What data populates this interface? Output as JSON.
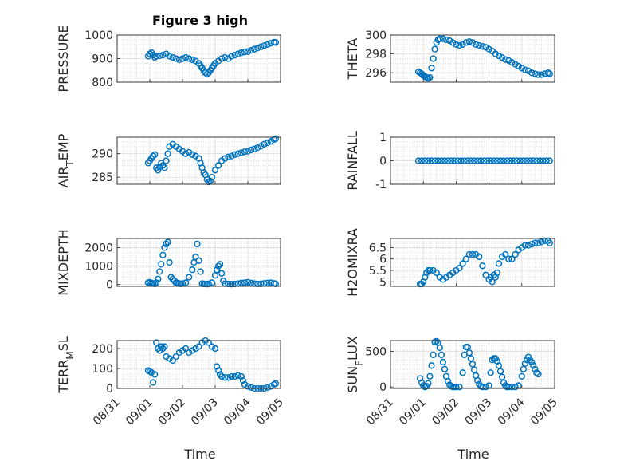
{
  "figure": {
    "title": "Figure 3 high",
    "xlabel": "Time",
    "marker_color": "#0072BD"
  },
  "chart_data": [
    {
      "type": "scatter",
      "ylabel_html": "PRESSURE",
      "ylim": [
        800,
        1000
      ],
      "yticks": [
        "800",
        "900",
        "1000"
      ],
      "xlim": [
        0,
        5
      ],
      "x": [
        0.95,
        1.0,
        1.05,
        1.1,
        1.15,
        1.2,
        1.3,
        1.4,
        1.5,
        1.6,
        1.7,
        1.8,
        1.9,
        2.0,
        2.1,
        2.2,
        2.3,
        2.4,
        2.5,
        2.55,
        2.6,
        2.65,
        2.7,
        2.75,
        2.8,
        2.85,
        2.9,
        2.95,
        3.0,
        3.1,
        3.2,
        3.3,
        3.4,
        3.5,
        3.6,
        3.7,
        3.8,
        3.9,
        4.0,
        4.1,
        4.2,
        4.3,
        4.4,
        4.5,
        4.6,
        4.7,
        4.8,
        4.85
      ],
      "y": [
        910,
        920,
        925,
        915,
        905,
        910,
        912,
        915,
        920,
        910,
        905,
        900,
        895,
        900,
        905,
        900,
        895,
        890,
        880,
        870,
        860,
        850,
        840,
        835,
        840,
        850,
        860,
        870,
        880,
        890,
        900,
        905,
        900,
        910,
        915,
        920,
        925,
        928,
        930,
        935,
        940,
        945,
        950,
        955,
        960,
        965,
        970,
        968
      ]
    },
    {
      "type": "scatter",
      "ylabel_html": "THETA",
      "ylim": [
        295,
        300
      ],
      "yticks": [
        "296",
        "298",
        "300"
      ],
      "xlim": [
        0,
        5
      ],
      "x": [
        0.85,
        0.9,
        0.95,
        1.0,
        1.05,
        1.1,
        1.15,
        1.2,
        1.25,
        1.3,
        1.35,
        1.4,
        1.45,
        1.5,
        1.6,
        1.7,
        1.8,
        1.9,
        2.0,
        2.1,
        2.2,
        2.3,
        2.4,
        2.5,
        2.6,
        2.7,
        2.8,
        2.9,
        3.0,
        3.1,
        3.2,
        3.3,
        3.4,
        3.5,
        3.6,
        3.7,
        3.8,
        3.9,
        4.0,
        4.1,
        4.2,
        4.3,
        4.4,
        4.5,
        4.6,
        4.7,
        4.8,
        4.85
      ],
      "y": [
        296.1,
        296.0,
        295.9,
        295.7,
        295.6,
        295.5,
        295.4,
        295.5,
        296.5,
        297.5,
        298.5,
        299.2,
        299.5,
        299.6,
        299.6,
        299.5,
        299.4,
        299.2,
        299.0,
        298.9,
        299.0,
        299.2,
        299.3,
        299.2,
        299.0,
        298.9,
        298.8,
        298.7,
        298.5,
        298.3,
        298.0,
        297.8,
        297.6,
        297.4,
        297.3,
        297.1,
        296.9,
        296.7,
        296.5,
        296.3,
        296.2,
        296.0,
        295.9,
        295.8,
        295.8,
        295.9,
        296.0,
        295.9
      ]
    },
    {
      "type": "scatter",
      "ylabel_html": "AIR<tspan baseline-shift=\"sub\" font-size=\"12\">T</tspan>EMP",
      "ylim": [
        283.5,
        293.5
      ],
      "yticks": [
        "285",
        "290"
      ],
      "xlim": [
        0,
        5
      ],
      "x": [
        0.95,
        1.0,
        1.05,
        1.1,
        1.15,
        1.2,
        1.25,
        1.3,
        1.35,
        1.4,
        1.45,
        1.5,
        1.55,
        1.6,
        1.7,
        1.8,
        1.9,
        2.0,
        2.1,
        2.2,
        2.3,
        2.4,
        2.5,
        2.55,
        2.6,
        2.65,
        2.7,
        2.75,
        2.8,
        2.85,
        2.9,
        3.0,
        3.1,
        3.2,
        3.3,
        3.4,
        3.5,
        3.6,
        3.7,
        3.8,
        3.9,
        4.0,
        4.1,
        4.2,
        4.3,
        4.4,
        4.5,
        4.6,
        4.7,
        4.8,
        4.85
      ],
      "y": [
        288,
        288.5,
        289,
        289.5,
        289.8,
        287,
        286.5,
        287.2,
        288,
        287.5,
        287,
        288.5,
        290,
        291.5,
        292,
        291.5,
        291,
        290.5,
        290,
        290.3,
        289.8,
        289.5,
        289,
        288,
        287,
        286,
        285.5,
        284.5,
        284,
        284.2,
        285,
        286.5,
        287.5,
        288.5,
        289,
        289.3,
        289.5,
        289.8,
        290,
        290.2,
        290.4,
        290.5,
        290.8,
        291,
        291.3,
        291.6,
        292,
        292.3,
        292.6,
        293,
        293.2
      ]
    },
    {
      "type": "scatter",
      "ylabel_html": "RAINFALL",
      "ylim": [
        -1,
        1
      ],
      "yticks": [
        "-1",
        "0",
        "1"
      ],
      "xlim": [
        0,
        5
      ],
      "x": [
        0.85,
        0.95,
        1.05,
        1.15,
        1.25,
        1.35,
        1.45,
        1.55,
        1.65,
        1.75,
        1.85,
        1.95,
        2.05,
        2.15,
        2.25,
        2.35,
        2.45,
        2.55,
        2.65,
        2.75,
        2.85,
        2.95,
        3.05,
        3.15,
        3.25,
        3.35,
        3.45,
        3.55,
        3.65,
        3.75,
        3.85,
        3.95,
        4.05,
        4.15,
        4.25,
        4.35,
        4.45,
        4.55,
        4.65,
        4.75,
        4.85
      ],
      "y": [
        0,
        0,
        0,
        0,
        0,
        0,
        0,
        0,
        0,
        0,
        0,
        0,
        0,
        0,
        0,
        0,
        0,
        0,
        0,
        0,
        0,
        0,
        0,
        0,
        0,
        0,
        0,
        0,
        0,
        0,
        0,
        0,
        0,
        0,
        0,
        0,
        0,
        0,
        0,
        0,
        0
      ]
    },
    {
      "type": "scatter",
      "ylabel_html": "MIXDEPTH",
      "ylim": [
        -100,
        2500
      ],
      "yticks": [
        "0",
        "1000",
        "2000"
      ],
      "xlim": [
        0,
        5
      ],
      "x": [
        0.95,
        1.0,
        1.05,
        1.1,
        1.15,
        1.2,
        1.25,
        1.3,
        1.35,
        1.4,
        1.45,
        1.5,
        1.55,
        1.6,
        1.65,
        1.7,
        1.75,
        1.8,
        1.85,
        1.9,
        1.95,
        2.0,
        2.1,
        2.2,
        2.3,
        2.35,
        2.4,
        2.45,
        2.5,
        2.55,
        2.6,
        2.65,
        2.7,
        2.75,
        2.8,
        2.9,
        3.0,
        3.05,
        3.1,
        3.15,
        3.2,
        3.25,
        3.3,
        3.4,
        3.5,
        3.6,
        3.7,
        3.8,
        3.9,
        4.0,
        4.1,
        4.2,
        4.3,
        4.4,
        4.5,
        4.6,
        4.7,
        4.8,
        4.85
      ],
      "y": [
        100,
        120,
        80,
        60,
        40,
        100,
        300,
        700,
        1100,
        1600,
        2000,
        2200,
        2300,
        1200,
        400,
        300,
        200,
        100,
        80,
        50,
        40,
        50,
        100,
        400,
        800,
        1200,
        1500,
        2200,
        1300,
        700,
        50,
        40,
        30,
        20,
        40,
        100,
        500,
        800,
        1000,
        1100,
        600,
        200,
        50,
        30,
        20,
        30,
        50,
        80,
        100,
        120,
        80,
        50,
        30,
        40,
        60,
        80,
        100,
        60,
        40
      ]
    },
    {
      "type": "scatter",
      "ylabel_html": "H2OMIXRA",
      "ylim": [
        4.8,
        6.9
      ],
      "yticks": [
        "5",
        "5.5",
        "6",
        "6.5"
      ],
      "xlim": [
        0,
        5
      ],
      "x": [
        0.9,
        0.95,
        1.0,
        1.05,
        1.1,
        1.15,
        1.2,
        1.3,
        1.4,
        1.5,
        1.6,
        1.7,
        1.8,
        1.9,
        2.0,
        2.1,
        2.2,
        2.3,
        2.4,
        2.5,
        2.6,
        2.7,
        2.8,
        2.9,
        3.0,
        3.05,
        3.1,
        3.15,
        3.2,
        3.25,
        3.3,
        3.4,
        3.5,
        3.6,
        3.7,
        3.8,
        3.9,
        4.0,
        4.1,
        4.2,
        4.3,
        4.4,
        4.5,
        4.6,
        4.7,
        4.8,
        4.85
      ],
      "y": [
        4.9,
        4.9,
        5.0,
        5.2,
        5.4,
        5.5,
        5.5,
        5.5,
        5.4,
        5.2,
        5.1,
        5.2,
        5.3,
        5.4,
        5.5,
        5.6,
        5.8,
        6.0,
        6.2,
        6.2,
        6.2,
        6.1,
        5.7,
        5.3,
        5.1,
        5.2,
        5.0,
        5.3,
        5.2,
        5.4,
        5.8,
        6.1,
        6.2,
        6.0,
        6.0,
        6.2,
        6.4,
        6.5,
        6.6,
        6.6,
        6.65,
        6.7,
        6.7,
        6.75,
        6.8,
        6.8,
        6.7
      ]
    },
    {
      "type": "scatter",
      "ylabel_html": "TERR<tspan baseline-shift=\"sub\" font-size=\"12\">M</tspan>SL",
      "ylim": [
        0,
        240
      ],
      "yticks": [
        "0",
        "100",
        "200"
      ],
      "xlim": [
        0,
        5
      ],
      "x": [
        0.95,
        1.0,
        1.05,
        1.1,
        1.15,
        1.2,
        1.25,
        1.3,
        1.35,
        1.4,
        1.45,
        1.5,
        1.6,
        1.7,
        1.8,
        1.9,
        2.0,
        2.1,
        2.2,
        2.3,
        2.4,
        2.5,
        2.6,
        2.7,
        2.8,
        2.9,
        3.0,
        3.05,
        3.1,
        3.15,
        3.2,
        3.3,
        3.4,
        3.5,
        3.6,
        3.7,
        3.8,
        3.85,
        3.9,
        4.0,
        4.1,
        4.2,
        4.3,
        4.4,
        4.5,
        4.6,
        4.7,
        4.8,
        4.85
      ],
      "y": [
        90,
        85,
        80,
        30,
        70,
        230,
        200,
        190,
        210,
        200,
        210,
        160,
        150,
        140,
        160,
        180,
        190,
        200,
        180,
        190,
        200,
        210,
        230,
        240,
        230,
        210,
        200,
        110,
        90,
        70,
        60,
        55,
        55,
        60,
        60,
        65,
        60,
        40,
        20,
        10,
        5,
        0,
        0,
        0,
        0,
        5,
        10,
        20,
        25
      ]
    },
    {
      "type": "scatter",
      "ylabel_html": "SUN<tspan baseline-shift=\"sub\" font-size=\"12\">F</tspan>LUX",
      "ylim": [
        -20,
        650
      ],
      "yticks": [
        "0",
        "500"
      ],
      "xlim": [
        0,
        5
      ],
      "x": [
        0.9,
        0.95,
        1.0,
        1.05,
        1.1,
        1.15,
        1.2,
        1.25,
        1.3,
        1.35,
        1.4,
        1.45,
        1.5,
        1.55,
        1.6,
        1.65,
        1.7,
        1.75,
        1.8,
        1.85,
        1.9,
        1.95,
        2.0,
        2.1,
        2.2,
        2.25,
        2.3,
        2.35,
        2.4,
        2.45,
        2.5,
        2.55,
        2.6,
        2.65,
        2.7,
        2.75,
        2.8,
        2.9,
        3.0,
        3.05,
        3.1,
        3.15,
        3.2,
        3.25,
        3.3,
        3.35,
        3.4,
        3.45,
        3.5,
        3.55,
        3.6,
        3.7,
        3.8,
        3.9,
        4.0,
        4.05,
        4.1,
        4.15,
        4.2,
        4.25,
        4.3,
        4.35,
        4.4,
        4.45,
        4.5
      ],
      "y": [
        120,
        60,
        20,
        0,
        10,
        50,
        150,
        300,
        450,
        630,
        640,
        620,
        550,
        450,
        350,
        250,
        150,
        80,
        30,
        10,
        0,
        0,
        0,
        0,
        200,
        450,
        560,
        560,
        480,
        400,
        320,
        240,
        160,
        90,
        40,
        10,
        0,
        0,
        20,
        200,
        380,
        400,
        400,
        360,
        300,
        220,
        140,
        60,
        20,
        0,
        0,
        0,
        0,
        20,
        150,
        250,
        330,
        380,
        420,
        380,
        350,
        300,
        250,
        200,
        180
      ]
    }
  ]
}
